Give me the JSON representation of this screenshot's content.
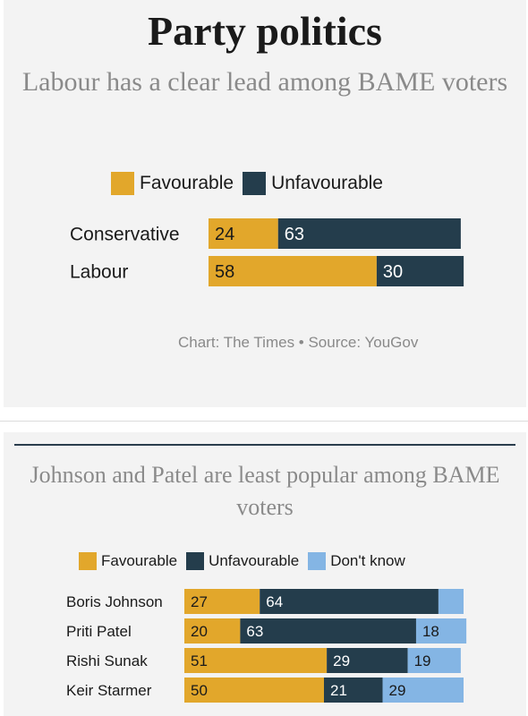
{
  "colors": {
    "favourable": "#e2a72b",
    "unfavourable": "#243d4c",
    "dont_know": "#84b5e4"
  },
  "chart_data": [
    {
      "type": "bar",
      "orientation": "horizontal",
      "stacked": true,
      "title": "Party politics",
      "subtitle": "Labour has a clear lead among BAME voters",
      "legend_placement": "top",
      "categories": [
        "Conservative",
        "Labour"
      ],
      "series": [
        {
          "name": "Favourable",
          "values": [
            24,
            58
          ]
        },
        {
          "name": "Unfavourable",
          "values": [
            63,
            30
          ]
        }
      ],
      "source": "Chart: The Times • Source: YouGov"
    },
    {
      "type": "bar",
      "orientation": "horizontal",
      "stacked": true,
      "subtitle": "Johnson and Patel are least popular among BAME voters",
      "legend_placement": "top",
      "categories": [
        "Boris Johnson",
        "Priti Patel",
        "Rishi Sunak",
        "Keir Starmer"
      ],
      "series": [
        {
          "name": "Favourable",
          "values": [
            27,
            20,
            51,
            50
          ]
        },
        {
          "name": "Unfavourable",
          "values": [
            64,
            63,
            29,
            21
          ]
        },
        {
          "name": "Don't know",
          "values": [
            9,
            18,
            19,
            29
          ],
          "labels": [
            "",
            "18",
            "19",
            "29"
          ]
        }
      ]
    }
  ]
}
